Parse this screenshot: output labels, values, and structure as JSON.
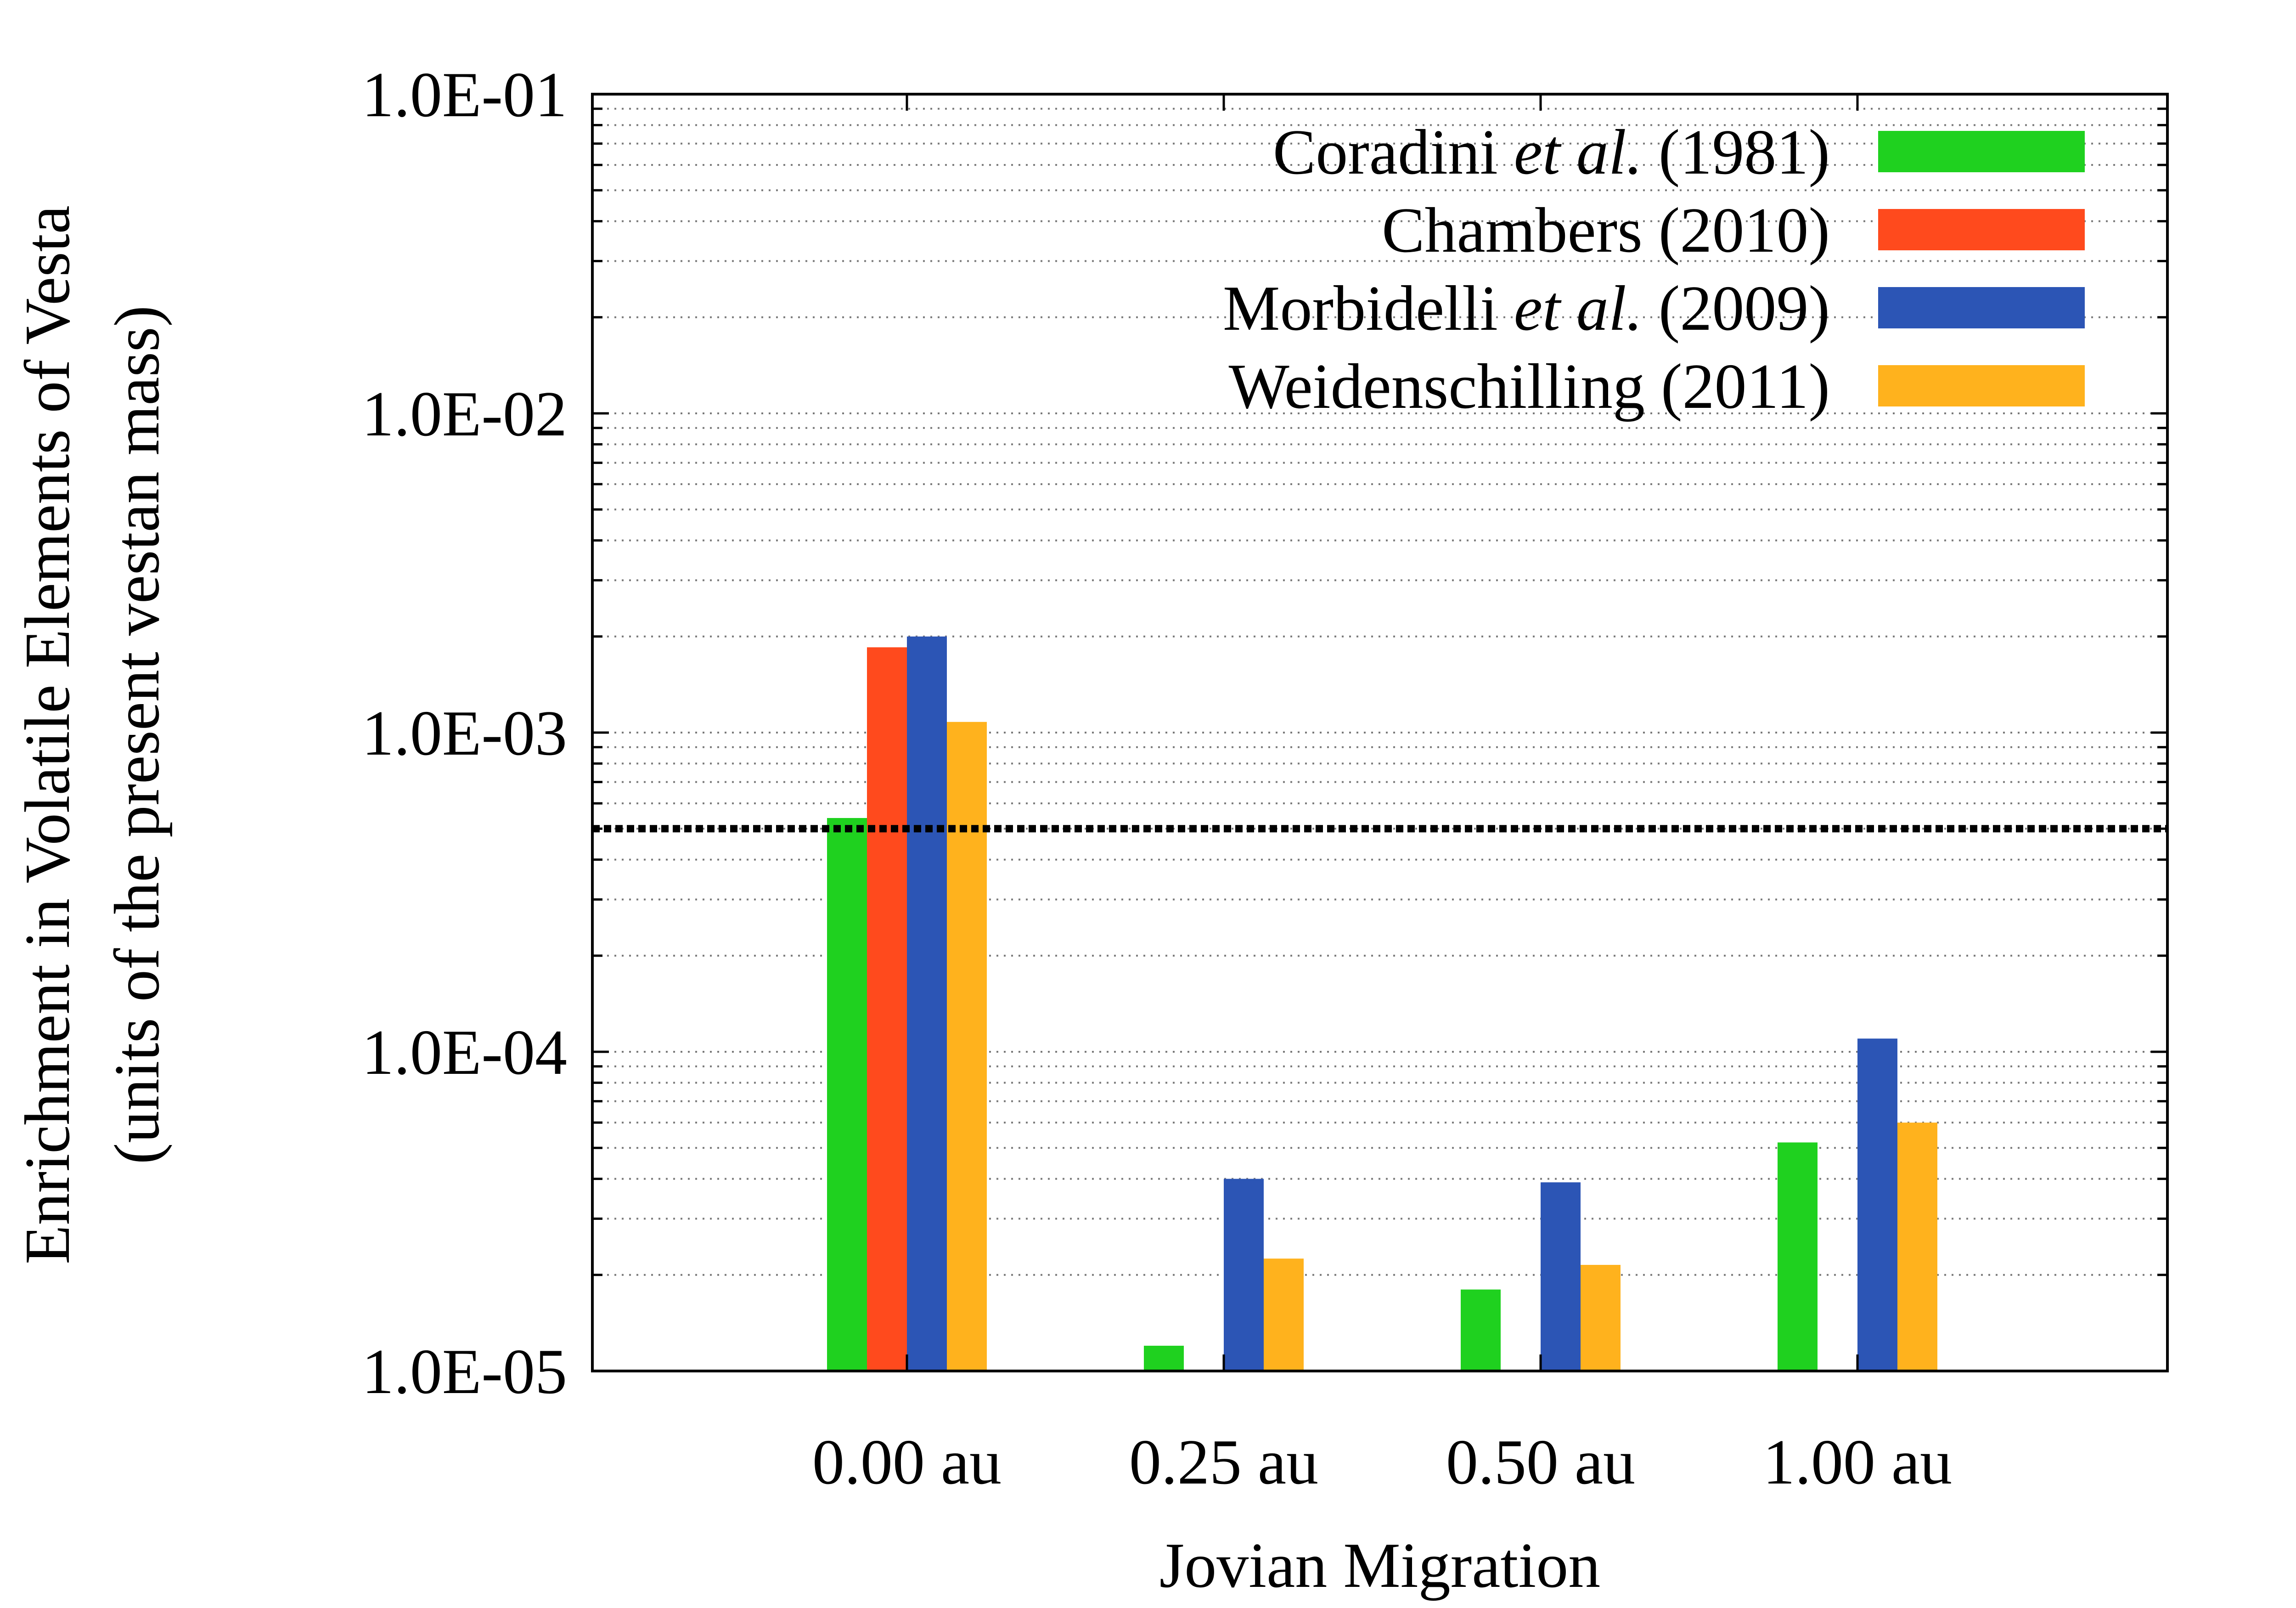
{
  "chart_data": {
    "type": "bar",
    "yscale": "log",
    "ylim": [
      1e-05,
      0.1
    ],
    "xlabel": "Jovian Migration",
    "ylabel": [
      "Enrichment in Volatile Elements of Vesta",
      "(units of the present vestan mass)"
    ],
    "yticks": [
      {
        "value": 1e-05,
        "label": "1.0E-05"
      },
      {
        "value": 0.0001,
        "label": "1.0E-04"
      },
      {
        "value": 0.001,
        "label": "1.0E-03"
      },
      {
        "value": 0.01,
        "label": "1.0E-02"
      },
      {
        "value": 0.1,
        "label": "1.0E-01"
      }
    ],
    "categories": [
      "0.00 au",
      "0.25 au",
      "0.50 au",
      "1.00 au"
    ],
    "series": [
      {
        "name": "Coradini et al. (1981)",
        "legend_parts": [
          {
            "t": "Coradini ",
            "italic": false
          },
          {
            "t": "et al.",
            "italic": true
          },
          {
            "t": " (1981)",
            "italic": false
          }
        ],
        "color": "#1fd11f",
        "values": [
          0.00054,
          1.2e-05,
          1.8e-05,
          5.2e-05
        ]
      },
      {
        "name": "Chambers (2010)",
        "legend_parts": [
          {
            "t": "Chambers (2010)",
            "italic": false
          }
        ],
        "color": "#ff4a1d",
        "values": [
          0.00185,
          null,
          null,
          null
        ]
      },
      {
        "name": "Morbidelli et al. (2009)",
        "legend_parts": [
          {
            "t": "Morbidelli ",
            "italic": false
          },
          {
            "t": "et al.",
            "italic": true
          },
          {
            "t": " (2009)",
            "italic": false
          }
        ],
        "color": "#2c55b5",
        "values": [
          0.002,
          4e-05,
          3.9e-05,
          0.00011
        ]
      },
      {
        "name": "Weidenschilling (2011)",
        "legend_parts": [
          {
            "t": "Weidenschilling (2011)",
            "italic": false
          }
        ],
        "color": "#ffb21d",
        "values": [
          0.00108,
          2.25e-05,
          2.15e-05,
          6e-05
        ]
      }
    ],
    "reference_line": {
      "value": 0.0005,
      "style": "dashed",
      "color": "#000000"
    },
    "grid": "horizontal dotted (major and minor)",
    "legend_position": "top-right"
  }
}
